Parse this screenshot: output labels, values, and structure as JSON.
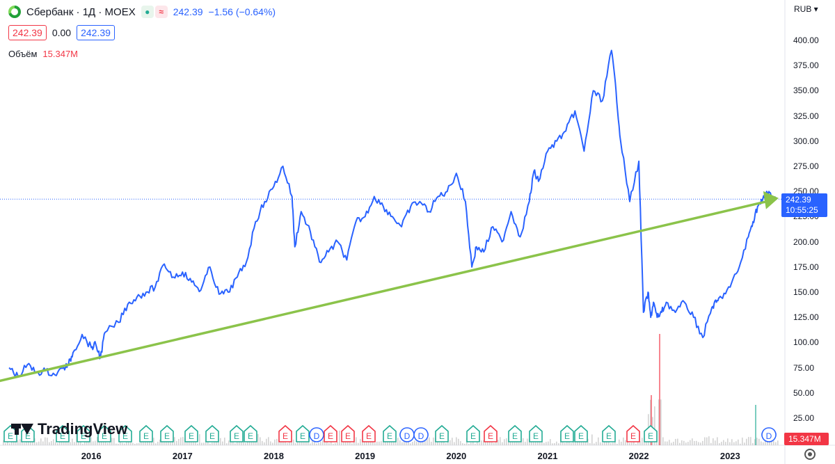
{
  "header": {
    "symbol": "Сбербанк · 1Д · MOEX",
    "last_price": "242.39",
    "change": "−1.56 (−0.64%)",
    "open_box": "242.39",
    "spread": "0.00",
    "close_box": "242.39",
    "volume_label": "Объём",
    "volume_value": "15.347M"
  },
  "axis": {
    "currency": "RUB",
    "price_tag": "242.39",
    "time_tag": "10:55:25",
    "volume_tag": "15.347M"
  },
  "branding": {
    "logo_text": "TradingView"
  },
  "colors": {
    "price_line": "#2962ff",
    "trend_line": "#8bc34a",
    "volume": "#c8c8c8",
    "up": "#22ab94",
    "down": "#f23645"
  },
  "chart_data": {
    "type": "line",
    "ylim": [
      0,
      420
    ],
    "y_ticks": [
      25,
      50,
      75,
      100,
      125,
      150,
      175,
      200,
      225,
      250,
      275,
      300,
      325,
      350,
      375,
      400
    ],
    "x_ticks": [
      "2016",
      "2017",
      "2018",
      "2019",
      "2020",
      "2021",
      "2022",
      "2023"
    ],
    "x_tick_values": [
      2016.0,
      2017.0,
      2018.0,
      2019.0,
      2020.0,
      2021.0,
      2022.0,
      2023.0
    ],
    "current_value": 242.39,
    "series": [
      {
        "x": [
          2015.1,
          2015.2,
          2015.3,
          2015.4,
          2015.5,
          2015.6,
          2015.7,
          2015.75,
          2015.8,
          2015.9,
          2016.0,
          2016.05,
          2016.1,
          2016.15,
          2016.3,
          2016.4,
          2016.5,
          2016.6,
          2016.7,
          2016.8,
          2016.9,
          2017.0,
          2017.1,
          2017.2,
          2017.3,
          2017.4,
          2017.5,
          2017.6,
          2017.7,
          2017.8,
          2017.9,
          2018.0,
          2018.1,
          2018.2,
          2018.23,
          2018.3,
          2018.4,
          2018.5,
          2018.6,
          2018.7,
          2018.8,
          2018.9,
          2019.0,
          2019.1,
          2019.2,
          2019.3,
          2019.4,
          2019.5,
          2019.6,
          2019.7,
          2019.8,
          2019.9,
          2020.0,
          2020.1,
          2020.17,
          2020.22,
          2020.3,
          2020.4,
          2020.5,
          2020.6,
          2020.7,
          2020.8,
          2020.85,
          2020.9,
          2021.0,
          2021.1,
          2021.2,
          2021.3,
          2021.4,
          2021.5,
          2021.6,
          2021.7,
          2021.75,
          2021.8,
          2021.9,
          2022.0,
          2022.05,
          2022.1,
          2022.13,
          2022.16,
          2022.2,
          2022.25,
          2022.3,
          2022.4,
          2022.5,
          2022.6,
          2022.7,
          2022.8,
          2022.85,
          2022.9,
          2023.0,
          2023.1,
          2023.2,
          2023.25,
          2023.3,
          2023.35,
          2023.4,
          2023.45,
          2023.5
        ],
        "values": [
          75,
          66,
          78,
          70,
          72,
          68,
          75,
          78,
          90,
          108,
          95,
          98,
          85,
          110,
          120,
          138,
          145,
          150,
          155,
          178,
          165,
          170,
          160,
          152,
          175,
          148,
          150,
          165,
          180,
          220,
          240,
          255,
          275,
          245,
          195,
          230,
          210,
          180,
          190,
          200,
          182,
          220,
          225,
          245,
          235,
          225,
          215,
          235,
          240,
          230,
          245,
          250,
          268,
          240,
          175,
          195,
          190,
          215,
          200,
          230,
          205,
          240,
          270,
          260,
          290,
          300,
          310,
          330,
          290,
          350,
          340,
          390,
          350,
          300,
          240,
          280,
          130,
          150,
          125,
          140,
          125,
          130,
          140,
          130,
          140,
          125,
          105,
          135,
          140,
          145,
          155,
          175,
          205,
          220,
          235,
          240,
          250,
          245,
          242
        ]
      }
    ],
    "trendline": {
      "x": [
        2015.0,
        2023.5
      ],
      "values": [
        62,
        242
      ]
    }
  }
}
